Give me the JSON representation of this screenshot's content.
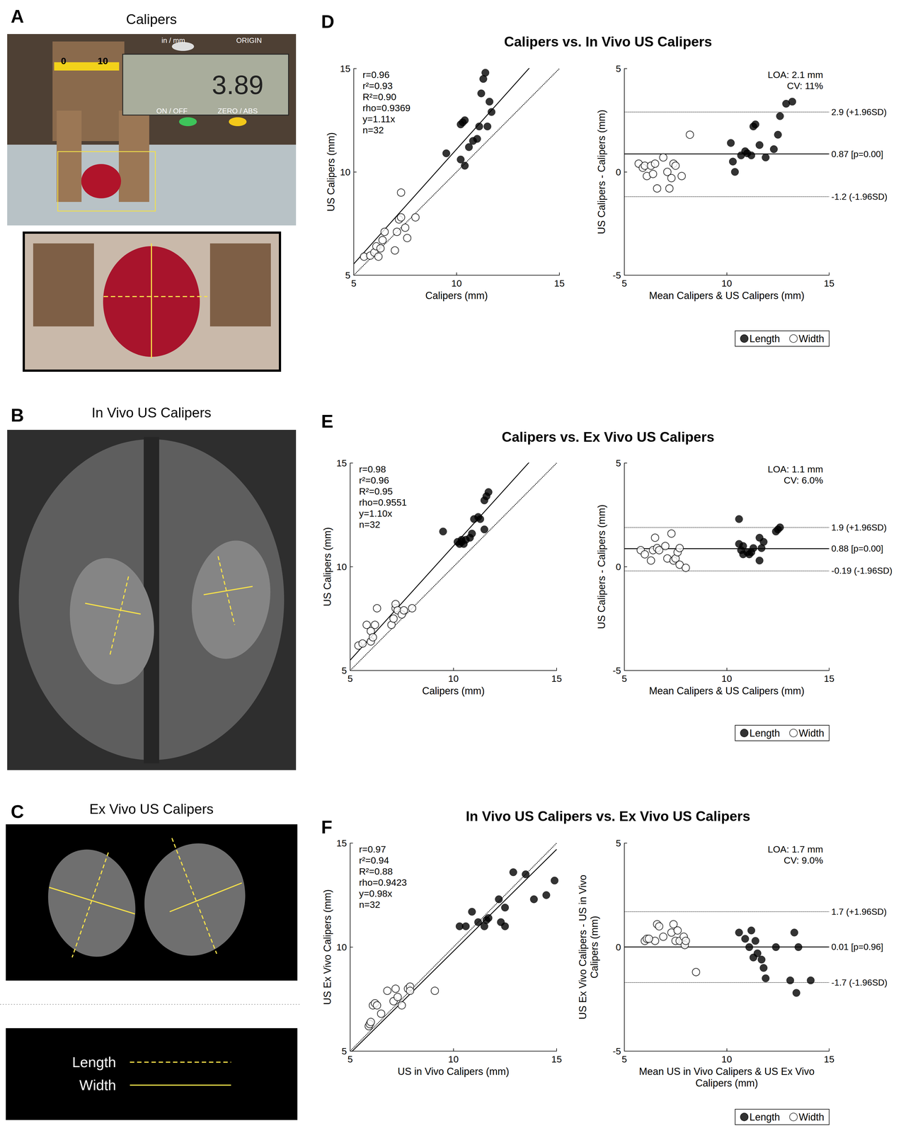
{
  "panels": [
    {
      "letter": "A",
      "title": "Calipers",
      "texts": [
        "0",
        "10",
        "in / mm",
        "ORIGIN",
        "3.89",
        "ON / OFF",
        "ZERO / ABS"
      ]
    },
    {
      "letter": "B",
      "title": "In Vivo US Calipers"
    },
    {
      "letter": "C",
      "title": "Ex Vivo US Calipers"
    }
  ],
  "image_legend": [
    {
      "name": "Length",
      "line_style": "dashed",
      "color": "#f5e04a"
    },
    {
      "name": "Width",
      "line_style": "solid",
      "color": "#f5e04a"
    }
  ],
  "figure_panels": [
    {
      "letter": "D",
      "title": "Calipers vs. In Vivo US Calipers"
    },
    {
      "letter": "E",
      "title": "Calipers vs. Ex Vivo US Calipers"
    },
    {
      "letter": "F",
      "title": "In Vivo US Calipers vs. Ex Vivo US Calipers"
    }
  ],
  "chart_data": [
    {
      "type": "scatter",
      "x_label": "Calipers (mm)",
      "y_label": "US Calipers (mm)",
      "xlim": [
        5,
        15
      ],
      "ylim": [
        5,
        15
      ],
      "xticks": [
        5,
        10,
        15
      ],
      "yticks": [
        5,
        10,
        15
      ],
      "grid": false,
      "annotations": [
        "r=0.96",
        "r²=0.93",
        "R²=0.90",
        "rho=0.9369",
        "y=1.11x",
        "n=32"
      ],
      "lines": [
        {
          "slope": 1.11,
          "line_style": "solid",
          "color": "#000000"
        },
        {
          "slope": 1,
          "line_style": "dotted",
          "color": "#000000"
        }
      ],
      "series": [
        {
          "name": "Length",
          "color": "#000000",
          "marker": "circle",
          "x": [
            9.5,
            10.2,
            10.3,
            10.4,
            10.2,
            10.4,
            10.6,
            10.8,
            11.0,
            11.1,
            11.3,
            11.4,
            11.5,
            11.6,
            11.7,
            11.2
          ],
          "values": [
            10.9,
            12.3,
            12.4,
            12.5,
            10.6,
            10.3,
            11.2,
            11.5,
            11.6,
            12.2,
            14.5,
            14.8,
            12.2,
            13.4,
            12.9,
            13.8
          ]
        },
        {
          "name": "Width",
          "color": "#000000",
          "marker": "open_circle",
          "x": [
            5.5,
            5.8,
            6.0,
            6.1,
            6.2,
            6.3,
            6.4,
            6.5,
            7.0,
            7.1,
            7.2,
            7.3,
            7.3,
            7.5,
            7.6,
            8.0
          ],
          "values": [
            5.9,
            5.95,
            6.1,
            6.4,
            5.9,
            6.3,
            6.7,
            7.1,
            6.2,
            7.1,
            7.7,
            7.8,
            9.0,
            7.3,
            6.8,
            7.8
          ]
        }
      ]
    },
    {
      "type": "scatter",
      "x_label": "Mean Calipers & US Calipers (mm)",
      "y_label": "US Calipers - Calipers (mm)",
      "xlim": [
        5,
        15
      ],
      "ylim": [
        -5,
        5
      ],
      "xticks": [
        5,
        10,
        15
      ],
      "yticks": [
        -5,
        0,
        5
      ],
      "grid": false,
      "legend": "bottom right",
      "annotations": [
        "LOA: 2.1 mm",
        "CV: 11%"
      ],
      "hlines": [
        {
          "value": 2.9,
          "label": "2.9 (+1.96SD)",
          "line_style": "dotted"
        },
        {
          "value": 0.87,
          "label": "0.87 [p=0.00]",
          "line_style": "solid"
        },
        {
          "value": -1.2,
          "label": "-1.2 (-1.96SD)",
          "line_style": "dotted"
        }
      ],
      "series": [
        {
          "name": "Length",
          "color": "#000000",
          "marker": "circle",
          "x": [
            10.2,
            10.3,
            10.4,
            10.7,
            10.9,
            11.0,
            11.2,
            11.3,
            11.4,
            11.6,
            11.9,
            12.3,
            12.5,
            12.6,
            12.9,
            13.2
          ],
          "values": [
            1.4,
            0.5,
            0.0,
            0.8,
            1.0,
            0.9,
            0.8,
            2.2,
            2.3,
            1.3,
            0.7,
            1.1,
            1.8,
            2.7,
            3.3,
            3.4
          ]
        },
        {
          "name": "Width",
          "color": "#000000",
          "marker": "open_circle",
          "x": [
            5.7,
            5.9,
            6.0,
            6.1,
            6.3,
            6.4,
            6.5,
            6.6,
            6.9,
            7.1,
            7.2,
            7.3,
            7.4,
            7.5,
            7.8,
            8.2
          ],
          "values": [
            0.4,
            0.2,
            0.3,
            -0.2,
            0.3,
            -0.1,
            0.4,
            -0.8,
            0.7,
            0.0,
            -0.8,
            -0.3,
            0.4,
            0.3,
            -0.2,
            1.8
          ]
        }
      ]
    },
    {
      "type": "scatter",
      "x_label": "Calipers (mm)",
      "y_label": "US Calipers (mm)",
      "xlim": [
        5,
        15
      ],
      "ylim": [
        5,
        15
      ],
      "xticks": [
        5,
        10,
        15
      ],
      "yticks": [
        5,
        10,
        15
      ],
      "grid": false,
      "annotations": [
        "r=0.98",
        "r²=0.96",
        "R²=0.95",
        "rho=0.9551",
        "y=1.10x",
        "n=32"
      ],
      "lines": [
        {
          "slope": 1.1,
          "line_style": "solid",
          "color": "#000000"
        },
        {
          "slope": 1,
          "line_style": "dotted",
          "color": "#000000"
        }
      ],
      "series": [
        {
          "name": "Length",
          "color": "#000000",
          "marker": "circle",
          "x": [
            9.5,
            10.2,
            10.3,
            10.4,
            10.5,
            10.6,
            10.8,
            10.9,
            11.0,
            11.2,
            11.3,
            11.5,
            11.5,
            11.6,
            11.7,
            10.4
          ],
          "values": [
            11.7,
            11.2,
            11.1,
            11.2,
            11.1,
            11.3,
            11.4,
            11.6,
            12.3,
            12.4,
            12.3,
            11.8,
            13.2,
            13.4,
            13.6,
            11.3
          ]
        },
        {
          "name": "Width",
          "color": "#000000",
          "marker": "open_circle",
          "x": [
            5.4,
            5.6,
            5.8,
            6.0,
            6.0,
            6.2,
            6.3,
            7.0,
            7.1,
            7.2,
            7.2,
            7.3,
            7.5,
            7.6,
            8.0,
            6.1
          ],
          "values": [
            6.2,
            6.3,
            7.2,
            6.9,
            6.4,
            7.2,
            8.0,
            7.2,
            7.5,
            8.0,
            8.2,
            7.9,
            7.7,
            7.9,
            8.0,
            6.6
          ]
        }
      ]
    },
    {
      "type": "scatter",
      "x_label": "Mean Calipers & US Calipers (mm)",
      "y_label": "US Calipers - Calipers (mm)",
      "xlim": [
        5,
        15
      ],
      "ylim": [
        -5,
        5
      ],
      "xticks": [
        5,
        10,
        15
      ],
      "yticks": [
        -5,
        0,
        5
      ],
      "grid": false,
      "legend": "bottom right",
      "annotations": [
        "LOA: 1.1 mm",
        "CV: 6.0%"
      ],
      "hlines": [
        {
          "value": 1.9,
          "label": "1.9 (+1.96SD)",
          "line_style": "dotted"
        },
        {
          "value": 0.88,
          "label": "0.88 [p=0.00]",
          "line_style": "solid"
        },
        {
          "value": -0.19,
          "label": "-0.19 (-1.96SD)",
          "line_style": "dotted"
        }
      ],
      "series": [
        {
          "name": "Length",
          "color": "#000000",
          "marker": "circle",
          "x": [
            10.6,
            10.6,
            10.7,
            10.8,
            10.8,
            11.0,
            11.1,
            11.3,
            11.6,
            11.6,
            11.7,
            11.8,
            12.4,
            12.5,
            12.6,
            11.2
          ],
          "values": [
            2.3,
            1.1,
            0.8,
            0.6,
            1.0,
            0.7,
            0.6,
            0.9,
            0.3,
            1.4,
            0.9,
            1.2,
            1.7,
            1.8,
            1.9,
            0.7
          ]
        },
        {
          "name": "Width",
          "color": "#000000",
          "marker": "open_circle",
          "x": [
            5.8,
            6.0,
            6.3,
            6.4,
            6.5,
            6.6,
            6.7,
            7.0,
            7.1,
            7.3,
            7.4,
            7.5,
            7.6,
            7.7,
            7.7,
            8.0
          ],
          "values": [
            0.8,
            0.6,
            0.3,
            0.8,
            1.4,
            0.9,
            0.8,
            1.0,
            0.4,
            1.6,
            0.3,
            0.4,
            0.7,
            0.1,
            0.9,
            -0.05
          ]
        }
      ]
    },
    {
      "type": "scatter",
      "x_label": "US in Vivo Calipers (mm)",
      "y_label": "US Ex Vivo Calipers (mm)",
      "xlim": [
        5,
        15
      ],
      "ylim": [
        5,
        15
      ],
      "xticks": [
        5,
        10,
        15
      ],
      "yticks": [
        5,
        10,
        15
      ],
      "grid": false,
      "annotations": [
        "r=0.97",
        "r²=0.94",
        "R²=0.88",
        "rho=0.9423",
        "y=0.98x",
        "n=32"
      ],
      "lines": [
        {
          "slope": 0.98,
          "line_style": "solid",
          "color": "#000000"
        },
        {
          "slope": 1,
          "line_style": "dotted",
          "color": "#000000"
        }
      ],
      "series": [
        {
          "name": "Length",
          "color": "#000000",
          "marker": "circle",
          "x": [
            10.3,
            10.6,
            10.9,
            11.2,
            11.5,
            11.6,
            11.7,
            12.2,
            12.3,
            12.5,
            12.5,
            12.9,
            13.5,
            13.9,
            14.5,
            14.9
          ],
          "values": [
            11.0,
            11.0,
            11.7,
            11.2,
            11.0,
            11.3,
            11.4,
            12.3,
            11.2,
            11.0,
            11.9,
            13.6,
            13.5,
            12.3,
            12.5,
            13.2
          ]
        },
        {
          "name": "Width",
          "color": "#000000",
          "marker": "open_circle",
          "x": [
            5.9,
            5.95,
            6.0,
            6.1,
            6.2,
            6.3,
            6.5,
            6.8,
            7.1,
            7.2,
            7.3,
            7.5,
            7.8,
            7.9,
            7.9,
            9.1
          ],
          "values": [
            6.2,
            6.3,
            6.4,
            7.2,
            7.3,
            7.2,
            6.8,
            7.9,
            7.4,
            8.0,
            7.6,
            7.2,
            8.0,
            8.1,
            7.9,
            7.9
          ]
        }
      ]
    },
    {
      "type": "scatter",
      "x_label": "Mean US in Vivo Calipers & US Ex Vivo\nCalipers (mm)",
      "y_label": "US Ex Vivo Calipers - US in Vivo\nCalipers (mm)",
      "xlim": [
        5,
        15
      ],
      "ylim": [
        -5,
        5
      ],
      "xticks": [
        5,
        10,
        15
      ],
      "yticks": [
        -5,
        0,
        5
      ],
      "grid": false,
      "legend": "bottom right",
      "annotations": [
        "LOA: 1.7 mm",
        "CV: 9.0%"
      ],
      "hlines": [
        {
          "value": 1.7,
          "label": "1.7 (+1.96SD)",
          "line_style": "dotted"
        },
        {
          "value": 0.01,
          "label": "0.01 [p=0.96]",
          "line_style": "solid"
        },
        {
          "value": -1.7,
          "label": "-1.7 (-1.96SD)",
          "line_style": "dotted"
        }
      ],
      "series": [
        {
          "name": "Length",
          "color": "#000000",
          "marker": "circle",
          "x": [
            10.6,
            10.9,
            11.1,
            11.2,
            11.3,
            11.4,
            11.5,
            11.7,
            11.8,
            11.9,
            12.4,
            13.1,
            13.3,
            13.5,
            13.4,
            14.1
          ],
          "values": [
            0.7,
            0.4,
            0.0,
            0.8,
            -0.5,
            0.3,
            -0.3,
            -0.6,
            -1.0,
            -1.5,
            0.0,
            -1.6,
            0.7,
            0.0,
            -2.2,
            -1.6
          ]
        },
        {
          "name": "Width",
          "color": "#000000",
          "marker": "open_circle",
          "x": [
            6.0,
            6.1,
            6.5,
            6.6,
            6.7,
            6.9,
            7.3,
            7.4,
            7.5,
            7.6,
            7.7,
            7.9,
            7.95,
            8.0,
            8.5,
            6.2
          ],
          "values": [
            0.3,
            0.4,
            0.3,
            1.1,
            1.0,
            0.5,
            0.7,
            1.1,
            0.3,
            0.8,
            0.3,
            0.5,
            0.1,
            0.3,
            -1.2,
            0.4
          ]
        }
      ]
    }
  ]
}
